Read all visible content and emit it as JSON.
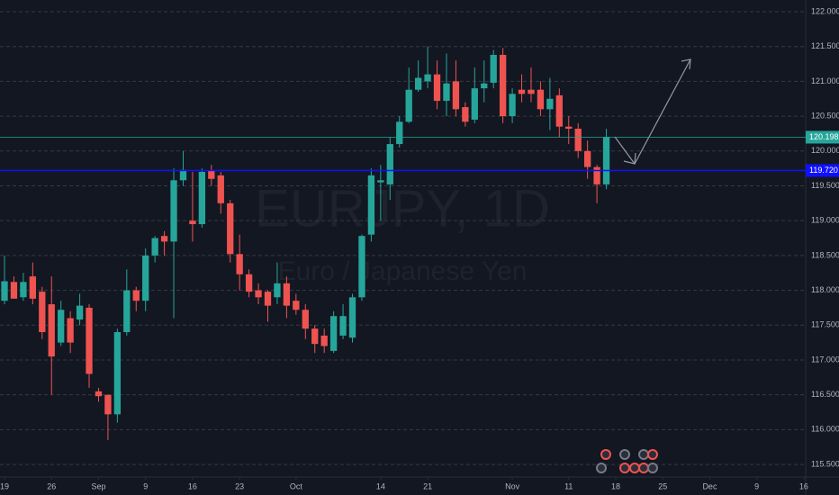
{
  "chart_data": {
    "type": "candlestick",
    "watermark": "EURJPY, 1D",
    "watermark_subtitle": "Euro / Japanese Yen",
    "x": [
      0,
      1,
      2,
      3,
      4,
      5,
      6,
      7,
      8,
      9,
      10,
      11,
      12,
      13,
      14,
      15,
      16,
      17,
      18,
      19,
      20,
      21,
      22,
      23,
      24,
      25,
      26,
      27,
      28,
      29,
      30,
      31,
      32,
      33,
      34,
      35,
      36,
      37,
      38,
      39,
      40,
      41,
      42,
      43,
      44,
      45,
      46,
      47,
      48,
      49,
      50,
      51,
      52,
      53,
      54,
      55,
      56,
      57,
      58,
      59,
      60,
      61,
      62,
      63,
      64
    ],
    "open": [
      117.85,
      118.12,
      117.9,
      118.2,
      117.98,
      117.8,
      117.25,
      117.6,
      117.58,
      117.75,
      116.55,
      116.5,
      116.22,
      117.4,
      118.0,
      117.85,
      118.5,
      118.78,
      118.7,
      119.58,
      119.0,
      118.95,
      119.72,
      119.65,
      119.25,
      118.52,
      118.23,
      118.0,
      117.98,
      117.9,
      118.1,
      117.85,
      117.72,
      117.45,
      117.35,
      117.13,
      117.35,
      117.32,
      117.9,
      118.8,
      119.55,
      119.52,
      120.1,
      120.42,
      120.88,
      121.0,
      121.1,
      120.72,
      121.0,
      120.63,
      120.45,
      120.9,
      120.98,
      121.38,
      120.5,
      120.88,
      120.88,
      120.88,
      120.6,
      120.8,
      120.35,
      120.32,
      120.0,
      119.77,
      119.52
    ],
    "high": [
      118.5,
      118.2,
      118.25,
      118.4,
      118.05,
      118.2,
      117.85,
      117.7,
      117.95,
      117.8,
      116.6,
      116.5,
      117.45,
      118.3,
      118.05,
      118.6,
      118.78,
      118.85,
      119.75,
      120.0,
      119.7,
      119.75,
      119.8,
      119.7,
      119.3,
      118.8,
      118.3,
      118.1,
      118.0,
      118.4,
      118.2,
      117.95,
      117.8,
      117.5,
      117.45,
      117.7,
      117.8,
      117.95,
      118.8,
      119.75,
      119.8,
      120.2,
      120.5,
      121.2,
      121.3,
      121.5,
      121.3,
      121.4,
      121.3,
      120.7,
      121.2,
      121.3,
      121.45,
      121.48,
      120.9,
      121.1,
      121.2,
      121.0,
      121.05,
      120.9,
      120.5,
      120.4,
      120.15,
      119.8,
      120.32
    ],
    "low": [
      117.8,
      117.9,
      117.85,
      117.8,
      117.3,
      116.5,
      117.2,
      117.1,
      117.5,
      116.6,
      116.4,
      115.85,
      116.1,
      117.35,
      117.7,
      117.7,
      118.4,
      118.5,
      117.6,
      119.5,
      118.7,
      118.9,
      119.5,
      119.1,
      118.4,
      118.0,
      117.9,
      117.8,
      117.55,
      117.8,
      117.6,
      117.65,
      117.3,
      117.1,
      117.1,
      117.1,
      117.3,
      117.25,
      117.85,
      118.7,
      119.0,
      119.3,
      120.05,
      120.4,
      120.85,
      120.9,
      120.6,
      120.5,
      120.5,
      120.35,
      120.4,
      120.7,
      120.9,
      120.4,
      120.4,
      120.7,
      120.7,
      120.5,
      120.3,
      120.2,
      120.1,
      119.9,
      119.6,
      119.25,
      119.45
    ],
    "close": [
      118.13,
      117.88,
      118.12,
      117.88,
      117.4,
      117.05,
      117.72,
      117.25,
      117.78,
      116.8,
      116.48,
      116.22,
      117.4,
      118.0,
      117.85,
      118.5,
      118.75,
      118.7,
      119.58,
      119.73,
      118.95,
      119.7,
      119.6,
      119.25,
      118.52,
      118.23,
      117.98,
      117.9,
      117.78,
      118.1,
      117.78,
      117.72,
      117.45,
      117.23,
      117.2,
      117.63,
      117.63,
      117.9,
      118.78,
      119.65,
      119.58,
      120.1,
      120.42,
      120.88,
      121.05,
      121.1,
      120.72,
      120.97,
      120.6,
      120.42,
      120.9,
      120.97,
      121.38,
      120.5,
      120.82,
      120.82,
      120.82,
      120.6,
      120.75,
      120.35,
      120.32,
      120.0,
      119.77,
      119.52,
      120.2
    ],
    "up_color": "#26a69a",
    "down_color": "#ef5350",
    "xlim": [
      -0.48,
      85.2
    ],
    "xticks": [
      {
        "value": 0,
        "label": "19"
      },
      {
        "value": 5,
        "label": "26"
      },
      {
        "value": 10,
        "label": "Sep"
      },
      {
        "value": 15,
        "label": "9"
      },
      {
        "value": 20,
        "label": "16"
      },
      {
        "value": 25,
        "label": "23"
      },
      {
        "value": 31,
        "label": "Oct"
      },
      {
        "value": 40,
        "label": "14"
      },
      {
        "value": 45,
        "label": "21"
      },
      {
        "value": 54,
        "label": "Nov"
      },
      {
        "value": 60,
        "label": "11"
      },
      {
        "value": 65,
        "label": "18"
      },
      {
        "value": 70,
        "label": "25"
      },
      {
        "value": 75,
        "label": "Dec"
      },
      {
        "value": 80,
        "label": "9"
      },
      {
        "value": 85,
        "label": "16"
      }
    ],
    "ylim": [
      115.32,
      122.168
    ],
    "yticks": [
      {
        "value": 115.5,
        "label": "115.500"
      },
      {
        "value": 116,
        "label": "116.000"
      },
      {
        "value": 116.5,
        "label": "116.500"
      },
      {
        "value": 117,
        "label": "117.000"
      },
      {
        "value": 117.5,
        "label": "117.500"
      },
      {
        "value": 118,
        "label": "118.000"
      },
      {
        "value": 118.5,
        "label": "118.500"
      },
      {
        "value": 119,
        "label": "119.000"
      },
      {
        "value": 119.5,
        "label": "119.500"
      },
      {
        "value": 120,
        "label": "120.000"
      },
      {
        "value": 120.5,
        "label": "120.500"
      },
      {
        "value": 121,
        "label": "121.000"
      },
      {
        "value": 121.5,
        "label": "121.500"
      },
      {
        "value": 122,
        "label": "122.000"
      }
    ],
    "grid": true,
    "price_lines": [
      {
        "value": 120.198,
        "label": "120.198",
        "color": "#26a69a"
      },
      {
        "value": 119.72,
        "label": "119.720",
        "color": "#1010ff"
      }
    ]
  }
}
